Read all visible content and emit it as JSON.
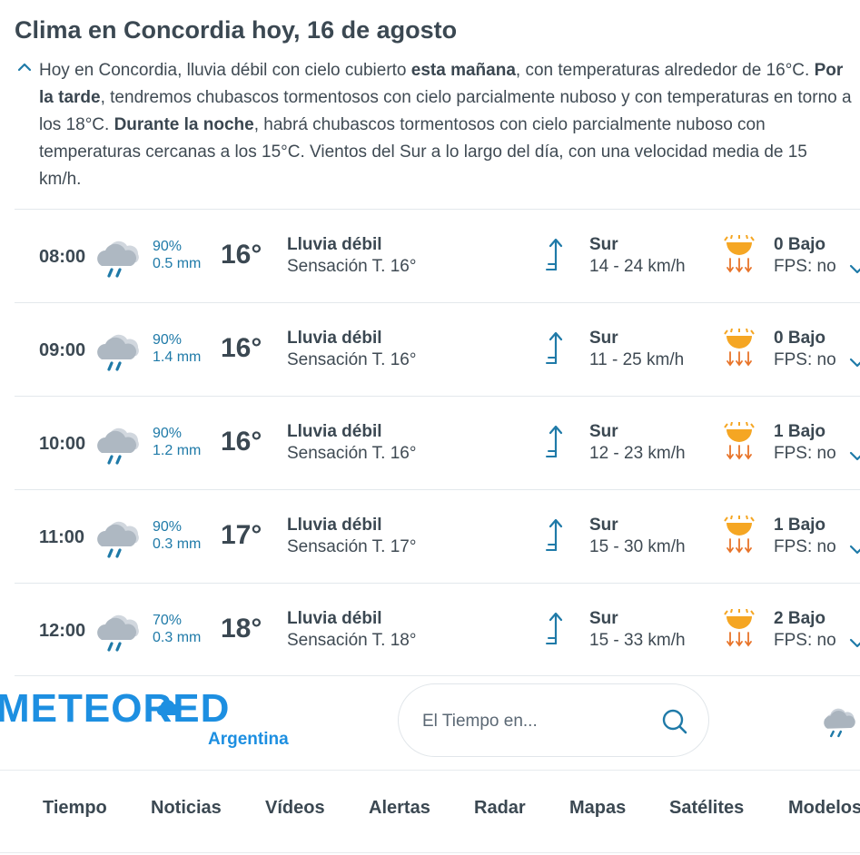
{
  "page": {
    "title": "Clima en Concordia hoy, 16 de agosto",
    "summary": {
      "p1": "Hoy en Concordia, lluvia débil con cielo cubierto ",
      "b1": "esta mañana",
      "p2": ", con temperaturas alrededor de 16°C. ",
      "b2": "Por la tarde",
      "p3": ", tendremos chubascos tormentosos con cielo parcialmente nuboso y con temperaturas en torno a los 18°C. ",
      "b3": "Durante la noche",
      "p4": ", habrá chubascos tormentosos con cielo parcialmente nuboso con temperaturas cercanas a los 15°C. Vientos del Sur a lo largo del día, con una velocidad media de 15 km/h."
    }
  },
  "forecast": [
    {
      "time": "08:00",
      "prob": "90%",
      "mm": "0.5 mm",
      "temp": "16°",
      "cond": "Lluvia débil",
      "feels": "Sensación T. 16°",
      "wind_dir": "Sur",
      "wind_speed": "14 - 24 km/h",
      "uv": "0 Bajo",
      "fps": "FPS: no"
    },
    {
      "time": "09:00",
      "prob": "90%",
      "mm": "1.4 mm",
      "temp": "16°",
      "cond": "Lluvia débil",
      "feels": "Sensación T. 16°",
      "wind_dir": "Sur",
      "wind_speed": "11 - 25 km/h",
      "uv": "0 Bajo",
      "fps": "FPS: no"
    },
    {
      "time": "10:00",
      "prob": "90%",
      "mm": "1.2 mm",
      "temp": "16°",
      "cond": "Lluvia débil",
      "feels": "Sensación T. 16°",
      "wind_dir": "Sur",
      "wind_speed": "12 - 23 km/h",
      "uv": "1 Bajo",
      "fps": "FPS: no"
    },
    {
      "time": "11:00",
      "prob": "90%",
      "mm": "0.3 mm",
      "temp": "17°",
      "cond": "Lluvia débil",
      "feels": "Sensación T. 17°",
      "wind_dir": "Sur",
      "wind_speed": "15 - 30 km/h",
      "uv": "1 Bajo",
      "fps": "FPS: no"
    },
    {
      "time": "12:00",
      "prob": "70%",
      "mm": "0.3 mm",
      "temp": "18°",
      "cond": "Lluvia débil",
      "feels": "Sensación T. 18°",
      "wind_dir": "Sur",
      "wind_speed": "15 - 33 km/h",
      "uv": "2 Bajo",
      "fps": "FPS: no"
    }
  ],
  "header": {
    "logo": "METEORED",
    "logo_sub": "Argentina",
    "search_placeholder": "El Tiempo en..."
  },
  "nav": [
    "Tiempo",
    "Noticias",
    "Vídeos",
    "Alertas",
    "Radar",
    "Mapas",
    "Satélites",
    "Modelos"
  ],
  "colors": {
    "accent": "#1d8fe1",
    "link": "#1f7aa8",
    "text": "#3b4852",
    "sun": "#f5a623"
  },
  "icons": {
    "summary_toggle": "chevron-up-icon",
    "weather": "cloud-rain-icon",
    "wind": "wind-arrow-icon",
    "uv": "sun-uv-icon",
    "row_toggle": "chevron-down-icon",
    "search": "search-icon"
  }
}
